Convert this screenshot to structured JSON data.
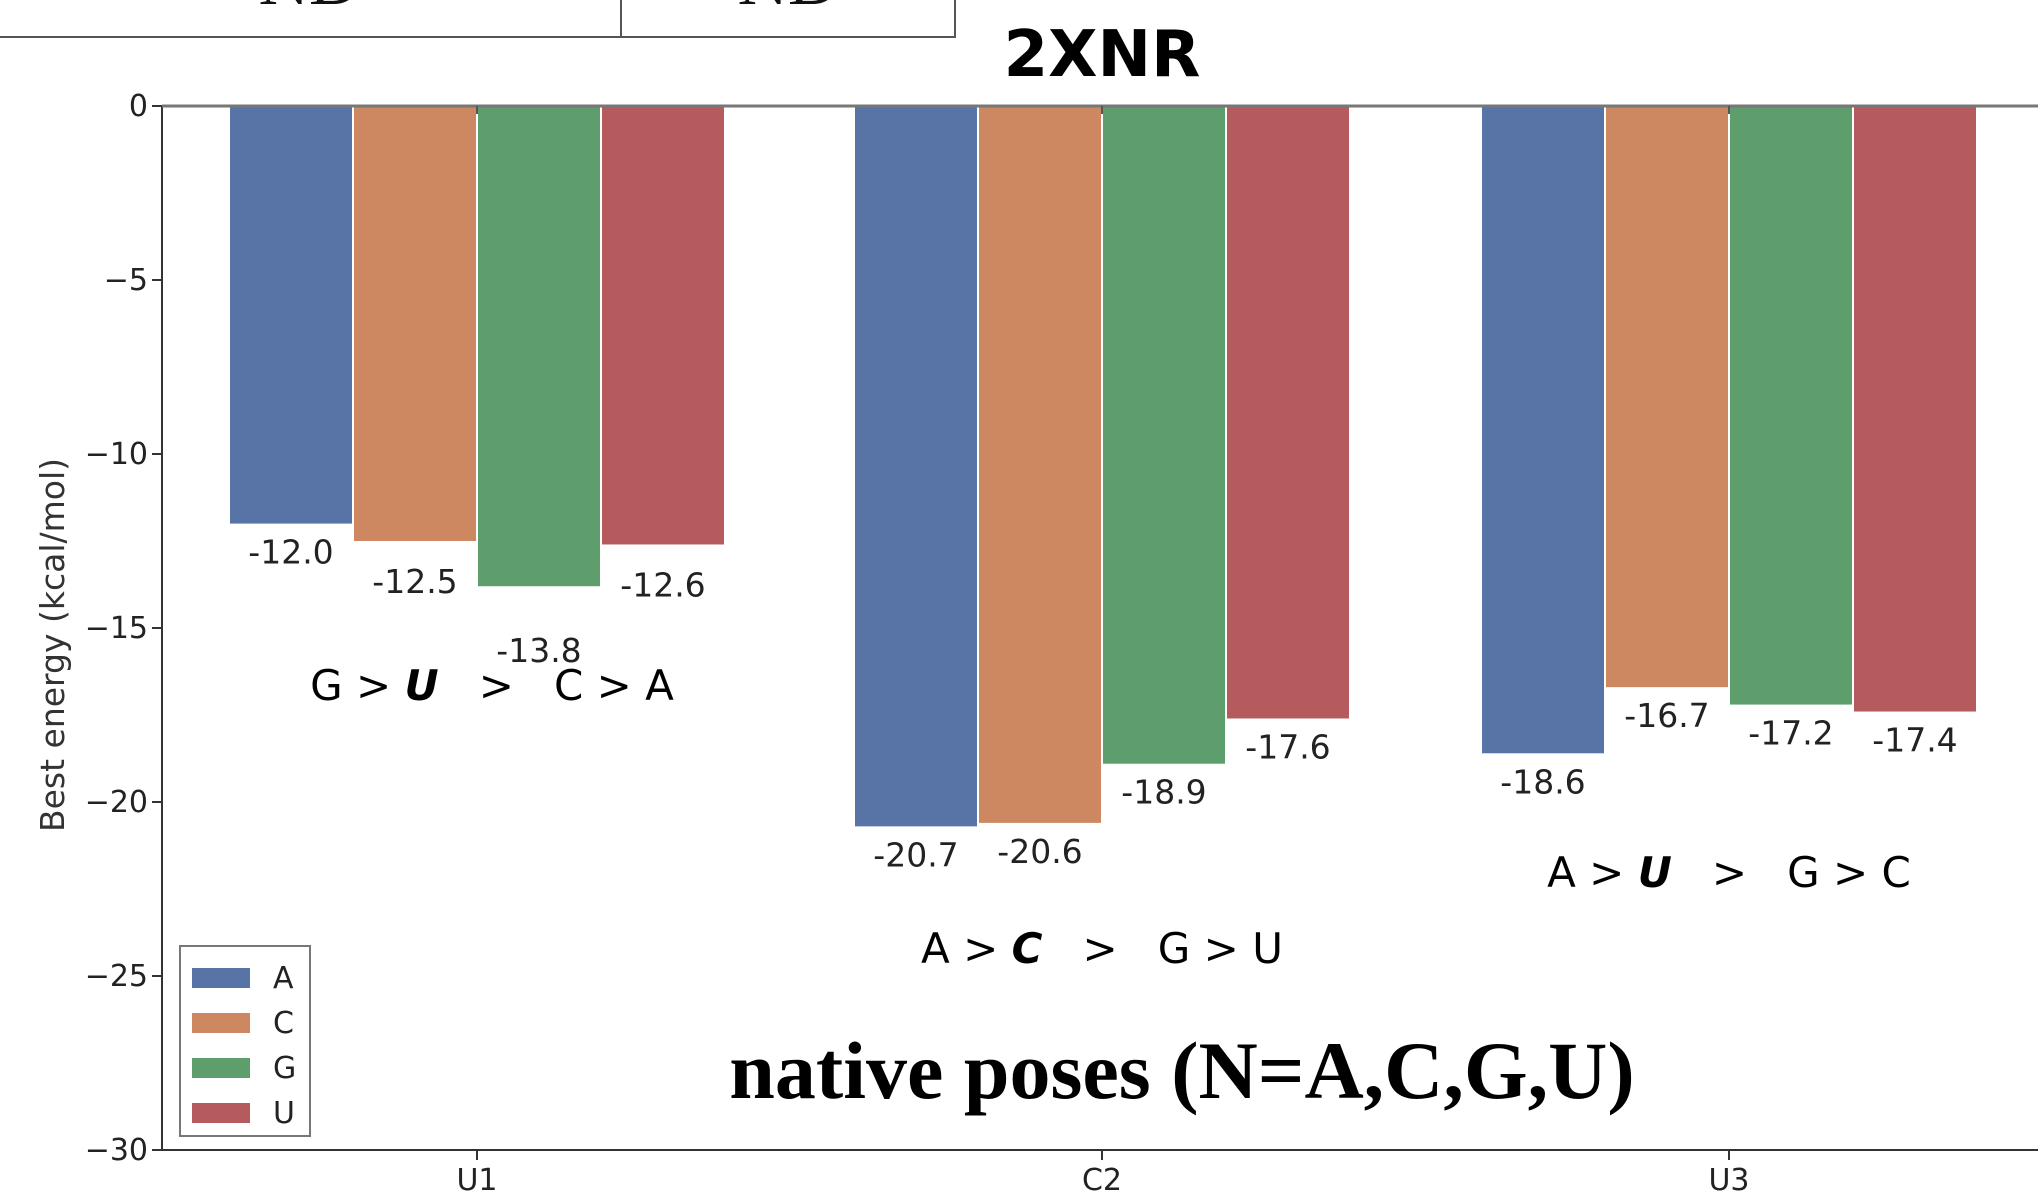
{
  "table": {
    "cells": [
      "ND",
      "ND"
    ]
  },
  "overlay_caption": "native poses (N=A,C,G,U)",
  "chart_data": {
    "type": "bar",
    "title": "2XNR",
    "xlabel": "",
    "ylabel": "Best energy (kcal/mol)",
    "categories": [
      "U1",
      "C2",
      "U3"
    ],
    "ylim": [
      -30,
      0
    ],
    "yticks": [
      0,
      -5,
      -10,
      -15,
      -20,
      -25,
      -30
    ],
    "ytick_labels": [
      "0",
      "−5",
      "−10",
      "−15",
      "−20",
      "−25",
      "−30"
    ],
    "grid": false,
    "legend_position": "lower-left",
    "series": [
      {
        "name": "A",
        "color": "#5874a6",
        "values": [
          -12.0,
          -20.7,
          -18.6
        ],
        "labels": [
          "-12.0",
          "-20.7",
          "-18.6"
        ]
      },
      {
        "name": "C",
        "color": "#cd8761",
        "values": [
          -12.5,
          -20.6,
          -16.7
        ],
        "labels": [
          "-12.5",
          "-20.6",
          "-16.7"
        ]
      },
      {
        "name": "G",
        "color": "#5e9e6d",
        "values": [
          -13.8,
          -18.9,
          -17.2
        ],
        "labels": [
          "-13.8",
          "-18.9",
          "-17.2"
        ]
      },
      {
        "name": "U",
        "color": "#b55b5e",
        "values": [
          -12.6,
          -17.6,
          -17.4
        ],
        "labels": [
          "-12.6",
          "-17.6",
          "-17.4"
        ]
      }
    ],
    "annotations": [
      {
        "category": "U1",
        "parts": [
          {
            "text": "G > ",
            "bold": false
          },
          {
            "text": "U",
            "bold": true
          },
          {
            "text": "   >   C > A",
            "bold": false
          }
        ]
      },
      {
        "category": "C2",
        "parts": [
          {
            "text": "A > ",
            "bold": false
          },
          {
            "text": "C",
            "bold": true
          },
          {
            "text": "   >   G > U",
            "bold": false
          }
        ]
      },
      {
        "category": "U3",
        "parts": [
          {
            "text": "A > ",
            "bold": false
          },
          {
            "text": "U",
            "bold": true
          },
          {
            "text": "   >   G > C",
            "bold": false
          }
        ]
      }
    ]
  }
}
